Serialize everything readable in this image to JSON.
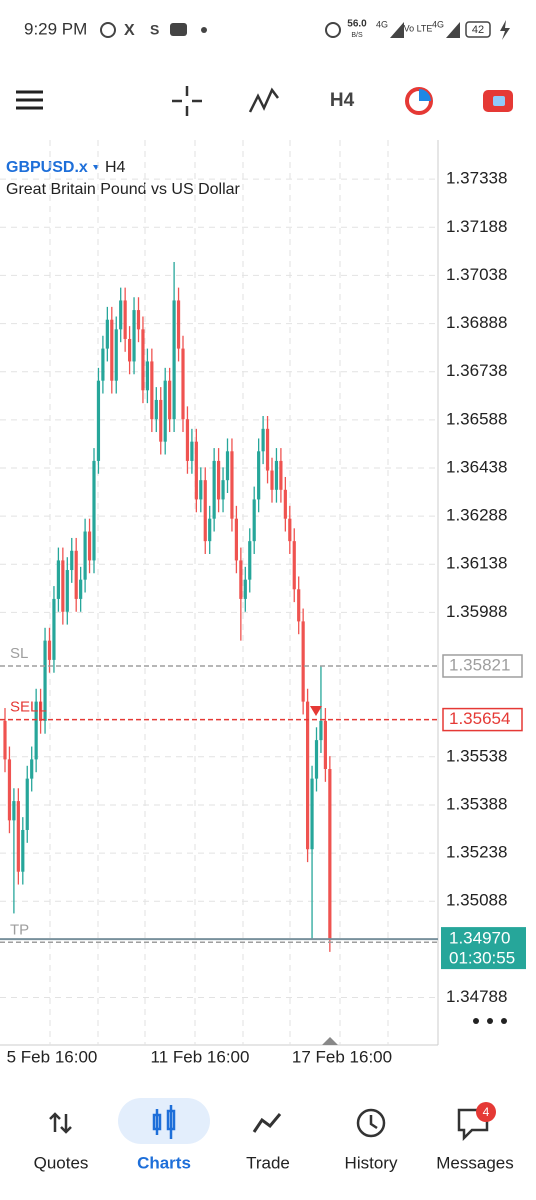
{
  "status_bar": {
    "time": "9:29 PM",
    "net_speed": "56.0",
    "net_unit": "B/S",
    "net1": "4G",
    "volte": "Vo LTE",
    "net2": "4G",
    "battery": "42"
  },
  "toolbar": {
    "timeframe": "H4"
  },
  "chart_data": {
    "type": "candlestick",
    "symbol": "GBPUSD.x",
    "timeframe": "H4",
    "description": "Great Britain Pound vs US Dollar",
    "up_color": "#26a69a",
    "down_color": "#ef5350",
    "grid": true,
    "ylim": [
      1.3464,
      1.3746
    ],
    "yticks": [
      1.37338,
      1.37188,
      1.37038,
      1.36888,
      1.36738,
      1.36588,
      1.36438,
      1.36288,
      1.36138,
      1.35988,
      1.35538,
      1.35388,
      1.35238,
      1.35088,
      1.34788
    ],
    "xlabels": [
      "5 Feb 16:00",
      "11 Feb 16:00",
      "17 Feb 16:00"
    ],
    "levels": [
      {
        "name": "SL",
        "value": 1.35821,
        "color": "#9e9e9e",
        "price_label": true
      },
      {
        "name": "SELL",
        "value": 1.35654,
        "color": "#e53935",
        "price_label": true
      },
      {
        "name": "TP",
        "value": 1.3496,
        "color": "#9e9e9e",
        "price_label": false
      }
    ],
    "current_price": {
      "value": 1.3497,
      "label": "1.34970"
    },
    "countdown": "01:30:55",
    "candles": [
      [
        1.3565,
        1.3569,
        1.3549,
        1.3553
      ],
      [
        1.3553,
        1.3557,
        1.353,
        1.3534
      ],
      [
        1.3534,
        1.3544,
        1.3505,
        1.354
      ],
      [
        1.354,
        1.3544,
        1.3514,
        1.3518
      ],
      [
        1.3518,
        1.3535,
        1.3514,
        1.3531
      ],
      [
        1.3531,
        1.3551,
        1.3527,
        1.3547
      ],
      [
        1.3547,
        1.3557,
        1.3543,
        1.3553
      ],
      [
        1.3553,
        1.3575,
        1.3549,
        1.3571
      ],
      [
        1.3571,
        1.3575,
        1.3561,
        1.3565
      ],
      [
        1.3565,
        1.3594,
        1.3561,
        1.359
      ],
      [
        1.359,
        1.3594,
        1.358,
        1.3584
      ],
      [
        1.3584,
        1.3607,
        1.358,
        1.3603
      ],
      [
        1.3603,
        1.3619,
        1.3599,
        1.3615
      ],
      [
        1.3615,
        1.3619,
        1.3595,
        1.3599
      ],
      [
        1.3599,
        1.3616,
        1.3595,
        1.3612
      ],
      [
        1.3612,
        1.3622,
        1.3608,
        1.3618
      ],
      [
        1.3618,
        1.3622,
        1.3599,
        1.3603
      ],
      [
        1.3603,
        1.3613,
        1.3599,
        1.3609
      ],
      [
        1.3609,
        1.3628,
        1.3605,
        1.3624
      ],
      [
        1.3624,
        1.3628,
        1.3611,
        1.3615
      ],
      [
        1.3615,
        1.365,
        1.3611,
        1.3646
      ],
      [
        1.3646,
        1.3675,
        1.3642,
        1.3671
      ],
      [
        1.3671,
        1.3685,
        1.3667,
        1.3681
      ],
      [
        1.3681,
        1.3694,
        1.3677,
        1.369
      ],
      [
        1.369,
        1.3694,
        1.3667,
        1.3671
      ],
      [
        1.3671,
        1.3691,
        1.3667,
        1.3687
      ],
      [
        1.3687,
        1.37,
        1.3683,
        1.3696
      ],
      [
        1.3696,
        1.37,
        1.368,
        1.3684
      ],
      [
        1.3684,
        1.3688,
        1.3673,
        1.3677
      ],
      [
        1.3677,
        1.3697,
        1.3673,
        1.3693
      ],
      [
        1.3693,
        1.3697,
        1.3683,
        1.3687
      ],
      [
        1.3687,
        1.3691,
        1.3664,
        1.3668
      ],
      [
        1.3668,
        1.3681,
        1.3664,
        1.3677
      ],
      [
        1.3677,
        1.3681,
        1.3655,
        1.3659
      ],
      [
        1.3659,
        1.3669,
        1.3655,
        1.3665
      ],
      [
        1.3665,
        1.3669,
        1.3648,
        1.3652
      ],
      [
        1.3652,
        1.3675,
        1.3648,
        1.3671
      ],
      [
        1.3671,
        1.3675,
        1.3655,
        1.3659
      ],
      [
        1.3659,
        1.3708,
        1.3655,
        1.3696
      ],
      [
        1.3696,
        1.37,
        1.3677,
        1.3681
      ],
      [
        1.3681,
        1.3685,
        1.3655,
        1.3659
      ],
      [
        1.3659,
        1.3663,
        1.3642,
        1.3646
      ],
      [
        1.3646,
        1.3656,
        1.3642,
        1.3652
      ],
      [
        1.3652,
        1.3656,
        1.363,
        1.3634
      ],
      [
        1.3634,
        1.3644,
        1.363,
        1.364
      ],
      [
        1.364,
        1.3644,
        1.3617,
        1.3621
      ],
      [
        1.3621,
        1.3632,
        1.3617,
        1.3628
      ],
      [
        1.3628,
        1.365,
        1.3624,
        1.3646
      ],
      [
        1.3646,
        1.365,
        1.363,
        1.3634
      ],
      [
        1.3634,
        1.3644,
        1.363,
        1.364
      ],
      [
        1.364,
        1.3653,
        1.3636,
        1.3649
      ],
      [
        1.3649,
        1.3653,
        1.3624,
        1.3628
      ],
      [
        1.3628,
        1.3632,
        1.3611,
        1.3615
      ],
      [
        1.3615,
        1.3619,
        1.359,
        1.3603
      ],
      [
        1.3603,
        1.3613,
        1.3599,
        1.3609
      ],
      [
        1.3609,
        1.3625,
        1.3605,
        1.3621
      ],
      [
        1.3621,
        1.3638,
        1.3617,
        1.3634
      ],
      [
        1.3634,
        1.3653,
        1.363,
        1.3649
      ],
      [
        1.3649,
        1.366,
        1.3645,
        1.3656
      ],
      [
        1.3656,
        1.366,
        1.3639,
        1.3643
      ],
      [
        1.3643,
        1.3647,
        1.3633,
        1.3637
      ],
      [
        1.3637,
        1.365,
        1.3633,
        1.3646
      ],
      [
        1.3646,
        1.365,
        1.3633,
        1.3637
      ],
      [
        1.3637,
        1.3641,
        1.3624,
        1.3628
      ],
      [
        1.3628,
        1.3632,
        1.3617,
        1.3621
      ],
      [
        1.3621,
        1.3625,
        1.3602,
        1.3606
      ],
      [
        1.3606,
        1.361,
        1.3592,
        1.3596
      ],
      [
        1.3596,
        1.36,
        1.3567,
        1.3571
      ],
      [
        1.3571,
        1.3575,
        1.3521,
        1.3525
      ],
      [
        1.3525,
        1.3551,
        1.3497,
        1.3547
      ],
      [
        1.3547,
        1.3563,
        1.3543,
        1.3559
      ],
      [
        1.3559,
        1.3582,
        1.3555,
        1.3565
      ],
      [
        1.3565,
        1.3569,
        1.3546,
        1.355
      ],
      [
        1.355,
        1.3554,
        1.3493,
        1.3497
      ]
    ]
  },
  "nav": {
    "items": [
      "Quotes",
      "Charts",
      "Trade",
      "History",
      "Messages"
    ],
    "active": 1,
    "badge": "4"
  }
}
